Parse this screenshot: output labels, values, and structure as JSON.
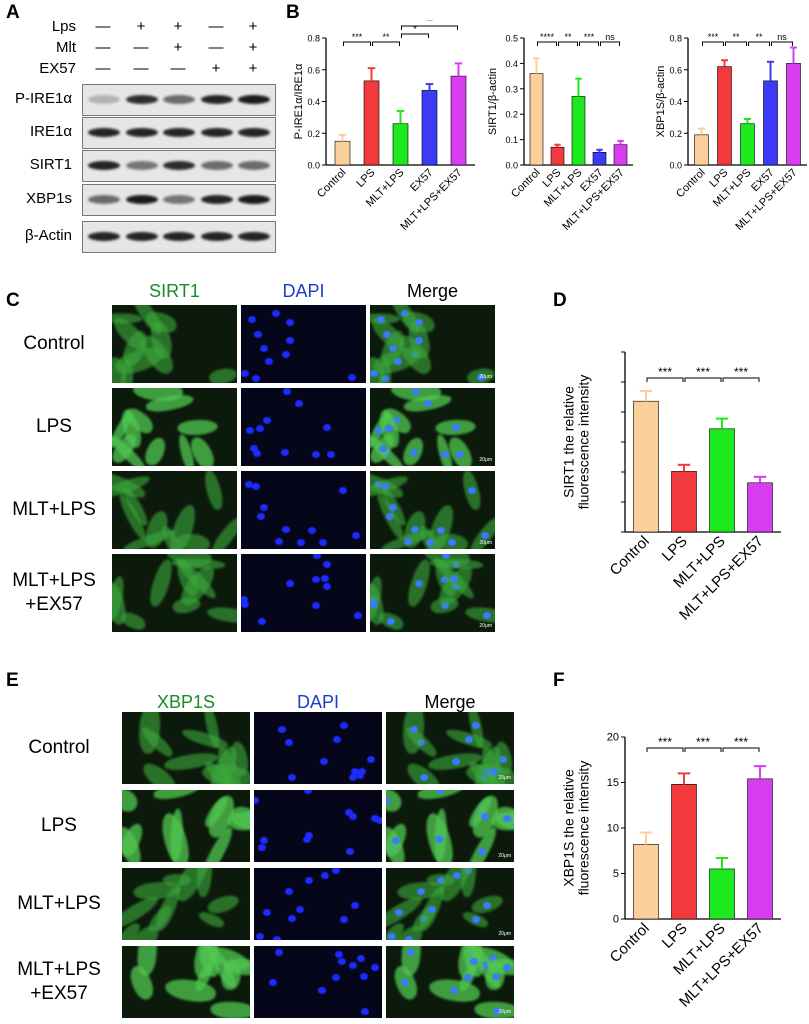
{
  "panels": {
    "A": "A",
    "B": "B",
    "C": "C",
    "D": "D",
    "E": "E",
    "F": "F"
  },
  "western_blot": {
    "treatments": [
      {
        "label": "Lps",
        "signs": [
          "—",
          "+",
          "+",
          "—",
          "+"
        ]
      },
      {
        "label": "Mlt",
        "signs": [
          "—",
          "—",
          "+",
          "—",
          "+"
        ]
      },
      {
        "label": "EX57",
        "signs": [
          "—",
          "—",
          "—",
          "+",
          "+"
        ]
      }
    ],
    "blots": [
      {
        "label": "P-IRE1α",
        "intensity": [
          0.25,
          0.9,
          0.6,
          0.95,
          1.0
        ]
      },
      {
        "label": "IRE1α",
        "intensity": [
          0.95,
          0.95,
          0.95,
          0.95,
          0.95
        ]
      },
      {
        "label": "SIRT1",
        "intensity": [
          0.95,
          0.55,
          0.9,
          0.6,
          0.6
        ]
      },
      {
        "label": "XBP1s",
        "intensity": [
          0.6,
          1.0,
          0.55,
          0.95,
          1.0
        ]
      },
      {
        "label": "β-Actin",
        "intensity": [
          0.95,
          0.95,
          0.95,
          0.95,
          0.95
        ]
      }
    ]
  },
  "colors": {
    "Control": "#fbcf9a",
    "LPS": "#f2393b",
    "MLT+LPS": "#1ee81e",
    "EX57": "#3a3af7",
    "MLT+LPS+EX57": "#d73ef2",
    "green_label": "#1a8a2a",
    "blue_label": "#1b3fc4"
  },
  "microscopy_C": {
    "columns": [
      "SIRT1",
      "DAPI",
      "Merge"
    ],
    "rows": [
      "Control",
      "LPS",
      "MLT+LPS",
      "MLT+LPS\n+EX57"
    ],
    "scale": "20μm"
  },
  "microscopy_E": {
    "columns": [
      "XBP1S",
      "DAPI",
      "Merge"
    ],
    "rows": [
      "Control",
      "LPS",
      "MLT+LPS",
      "MLT+LPS\n+EX57"
    ],
    "scale": "20μm"
  },
  "chart_data": [
    {
      "panel": "B",
      "type": "bar",
      "ylabel": "P-IRE1α/IRE1α",
      "categories": [
        "Control",
        "LPS",
        "MLT+LPS",
        "EX57",
        "MLT+LPS+EX57"
      ],
      "values": [
        0.15,
        0.53,
        0.26,
        0.47,
        0.56
      ],
      "errors": [
        0.04,
        0.08,
        0.08,
        0.04,
        0.08
      ],
      "ylim": [
        0,
        0.8
      ],
      "yticks": [
        "0.0",
        "0.2",
        "0.4",
        "0.6",
        "0.8"
      ],
      "sig": [
        {
          "from": 0,
          "to": 1,
          "label": "***",
          "level": 0
        },
        {
          "from": 1,
          "to": 2,
          "label": "**",
          "level": 0
        },
        {
          "from": 2,
          "to": 3,
          "label": "*",
          "level": 1
        },
        {
          "from": 2,
          "to": 4,
          "label": "**",
          "level": 2
        }
      ]
    },
    {
      "panel": "B",
      "type": "bar",
      "ylabel": "SIRT1/β-actin",
      "categories": [
        "Control",
        "LPS",
        "MLT+LPS",
        "EX57",
        "MLT+LPS+EX57"
      ],
      "values": [
        0.36,
        0.07,
        0.27,
        0.05,
        0.08
      ],
      "errors": [
        0.06,
        0.01,
        0.07,
        0.01,
        0.015
      ],
      "ylim": [
        0,
        0.5
      ],
      "yticks": [
        "0.0",
        "0.1",
        "0.2",
        "0.3",
        "0.4",
        "0.5"
      ],
      "sig": [
        {
          "from": 0,
          "to": 1,
          "label": "****",
          "level": 0
        },
        {
          "from": 1,
          "to": 2,
          "label": "**",
          "level": 0
        },
        {
          "from": 2,
          "to": 3,
          "label": "***",
          "level": 0
        },
        {
          "from": 3,
          "to": 4,
          "label": "ns",
          "level": 0
        }
      ]
    },
    {
      "panel": "B",
      "type": "bar",
      "ylabel": "XBP1S/β-actin",
      "categories": [
        "Control",
        "LPS",
        "MLT+LPS",
        "EX57",
        "MLT+LPS+EX57"
      ],
      "values": [
        0.19,
        0.62,
        0.26,
        0.53,
        0.64
      ],
      "errors": [
        0.04,
        0.04,
        0.03,
        0.12,
        0.1
      ],
      "ylim": [
        0,
        0.8
      ],
      "yticks": [
        "0.0",
        "0.2",
        "0.4",
        "0.6",
        "0.8"
      ],
      "sig": [
        {
          "from": 0,
          "to": 1,
          "label": "***",
          "level": 0
        },
        {
          "from": 1,
          "to": 2,
          "label": "**",
          "level": 0
        },
        {
          "from": 2,
          "to": 3,
          "label": "**",
          "level": 0
        },
        {
          "from": 3,
          "to": 4,
          "label": "ns",
          "level": 0
        }
      ]
    },
    {
      "panel": "D",
      "type": "bar",
      "ylabel": "SIRT1 the relative\nfluorescence intensity",
      "categories": [
        "Control",
        "LPS",
        "MLT+LPS",
        "MLT+LPS+EX57"
      ],
      "values": [
        21.8,
        10.1,
        17.2,
        8.2
      ],
      "errors": [
        1.7,
        1.1,
        1.7,
        1.0
      ],
      "ylim": [
        0,
        30
      ],
      "yticks": [],
      "sig": [
        {
          "from": 0,
          "to": 1,
          "label": "***",
          "level": 0
        },
        {
          "from": 1,
          "to": 2,
          "label": "***",
          "level": 0
        },
        {
          "from": 2,
          "to": 3,
          "label": "***",
          "level": 0
        }
      ]
    },
    {
      "panel": "F",
      "type": "bar",
      "ylabel": "XBP1S the relative\nfluorescence intensity",
      "categories": [
        "Control",
        "LPS",
        "MLT+LPS",
        "MLT+LPS+EX57"
      ],
      "values": [
        8.2,
        14.8,
        5.5,
        15.4
      ],
      "errors": [
        1.3,
        1.2,
        1.2,
        1.4
      ],
      "ylim": [
        0,
        20
      ],
      "yticks": [
        "0",
        "5",
        "10",
        "15",
        "20"
      ],
      "sig": [
        {
          "from": 0,
          "to": 1,
          "label": "***",
          "level": 0
        },
        {
          "from": 1,
          "to": 2,
          "label": "***",
          "level": 0
        },
        {
          "from": 2,
          "to": 3,
          "label": "***",
          "level": 0
        }
      ]
    }
  ]
}
